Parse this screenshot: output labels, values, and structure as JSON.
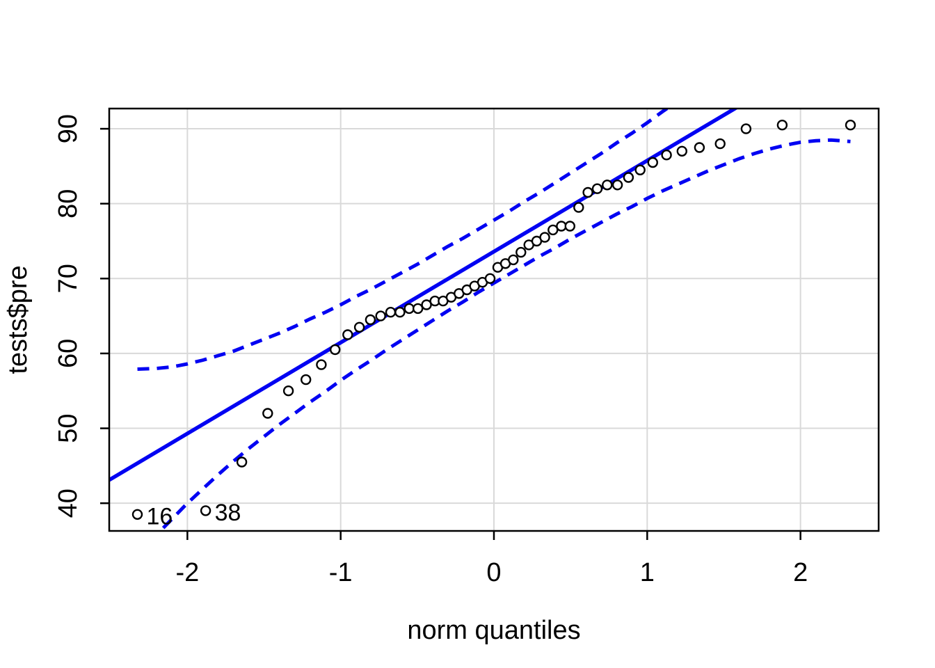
{
  "figure": {
    "kind": "R qqPlot graphics window",
    "background": "#ffffff"
  },
  "colors": {
    "line_blue": "#0202f2",
    "grid": "#d9d9d9",
    "axis": "#000000",
    "point_stroke": "#000000",
    "point_fill": "#ffffff",
    "label_text": "#000000"
  },
  "chart_data": {
    "type": "scatter",
    "title": "",
    "xlabel": "norm quantiles",
    "ylabel": "tests$pre",
    "grid": true,
    "legend": "none",
    "xlim": [
      -2.51,
      2.51
    ],
    "ylim": [
      36.3,
      92.7
    ],
    "x_ticks": [
      -2,
      -1,
      0,
      1,
      2
    ],
    "y_ticks": [
      40,
      50,
      60,
      70,
      80,
      90
    ],
    "points": {
      "q": [
        -2.326,
        -1.881,
        -1.645,
        -1.476,
        -1.341,
        -1.227,
        -1.126,
        -1.036,
        -0.954,
        -0.878,
        -0.806,
        -0.739,
        -0.674,
        -0.613,
        -0.553,
        -0.496,
        -0.44,
        -0.385,
        -0.332,
        -0.279,
        -0.228,
        -0.176,
        -0.126,
        -0.075,
        -0.025,
        0.025,
        0.075,
        0.126,
        0.176,
        0.228,
        0.279,
        0.332,
        0.385,
        0.44,
        0.496,
        0.553,
        0.613,
        0.674,
        0.739,
        0.806,
        0.878,
        0.954,
        1.036,
        1.126,
        1.227,
        1.341,
        1.476,
        1.645,
        1.881,
        2.326
      ],
      "value": [
        38.5,
        39,
        45.5,
        52,
        55,
        56.5,
        58.5,
        60.5,
        62.5,
        63.5,
        64.5,
        65,
        65.5,
        65.5,
        66,
        66,
        66.5,
        67,
        67,
        67.5,
        68,
        68.5,
        69,
        69.5,
        70,
        71.5,
        72,
        72.5,
        73.5,
        74.5,
        75,
        75.5,
        76.5,
        77,
        77,
        79.5,
        81.5,
        82,
        82.5,
        82.5,
        83.5,
        84.5,
        85.5,
        86.5,
        87,
        87.5,
        88,
        90,
        90.5,
        90.5
      ]
    },
    "reference_line": {
      "intercept": 73.6,
      "slope": 12.15
    },
    "envelope": {
      "q": [
        -2.326,
        -2.2,
        -2.1,
        -2.0,
        -1.9,
        -1.8,
        -1.7,
        -1.6,
        -1.5,
        -1.4,
        -1.3,
        -1.2,
        -1.1,
        -1.0,
        -0.9,
        -0.8,
        -0.7,
        -0.6,
        -0.5,
        -0.4,
        -0.3,
        -0.2,
        -0.1,
        0,
        0.1,
        0.2,
        0.3,
        0.4,
        0.5,
        0.6,
        0.7,
        0.8,
        0.9,
        1.0,
        1.1,
        1.2,
        1.3,
        1.4,
        1.5,
        1.6,
        1.7,
        1.8,
        1.9,
        2.0,
        2.1,
        2.2,
        2.326
      ],
      "upper": [
        57.9,
        58.0,
        58.2,
        58.6,
        59.1,
        59.7,
        60.3,
        61.1,
        61.9,
        62.7,
        63.6,
        64.6,
        65.5,
        66.5,
        67.6,
        68.6,
        69.7,
        70.8,
        71.9,
        73.1,
        74.3,
        75.4,
        76.6,
        77.8,
        79.0,
        80.3,
        81.5,
        82.8,
        84.1,
        85.4,
        86.7,
        88.1,
        89.4,
        90.8,
        92.3,
        93.7,
        95.2,
        96.7,
        98.3,
        99.9,
        101.7,
        103.4,
        105.3,
        107.2,
        109.3,
        111.5,
        114.4
      ],
      "lower": [
        32.8,
        35.8,
        37.9,
        40.0,
        41.9,
        43.8,
        45.6,
        47.3,
        48.9,
        50.5,
        52.0,
        53.5,
        54.9,
        56.4,
        57.8,
        59.1,
        60.5,
        61.8,
        63.1,
        64.4,
        65.7,
        66.9,
        68.2,
        69.4,
        70.6,
        71.8,
        73.0,
        74.1,
        75.3,
        76.4,
        77.5,
        78.6,
        79.6,
        80.7,
        81.7,
        82.6,
        83.5,
        84.4,
        85.2,
        86.0,
        86.7,
        87.3,
        87.8,
        88.2,
        88.4,
        88.5,
        88.3
      ]
    },
    "outlier_labels": [
      {
        "text": "16",
        "q": -2.326,
        "value": 38.5
      },
      {
        "text": "38",
        "q": -1.881,
        "value": 39
      }
    ]
  }
}
